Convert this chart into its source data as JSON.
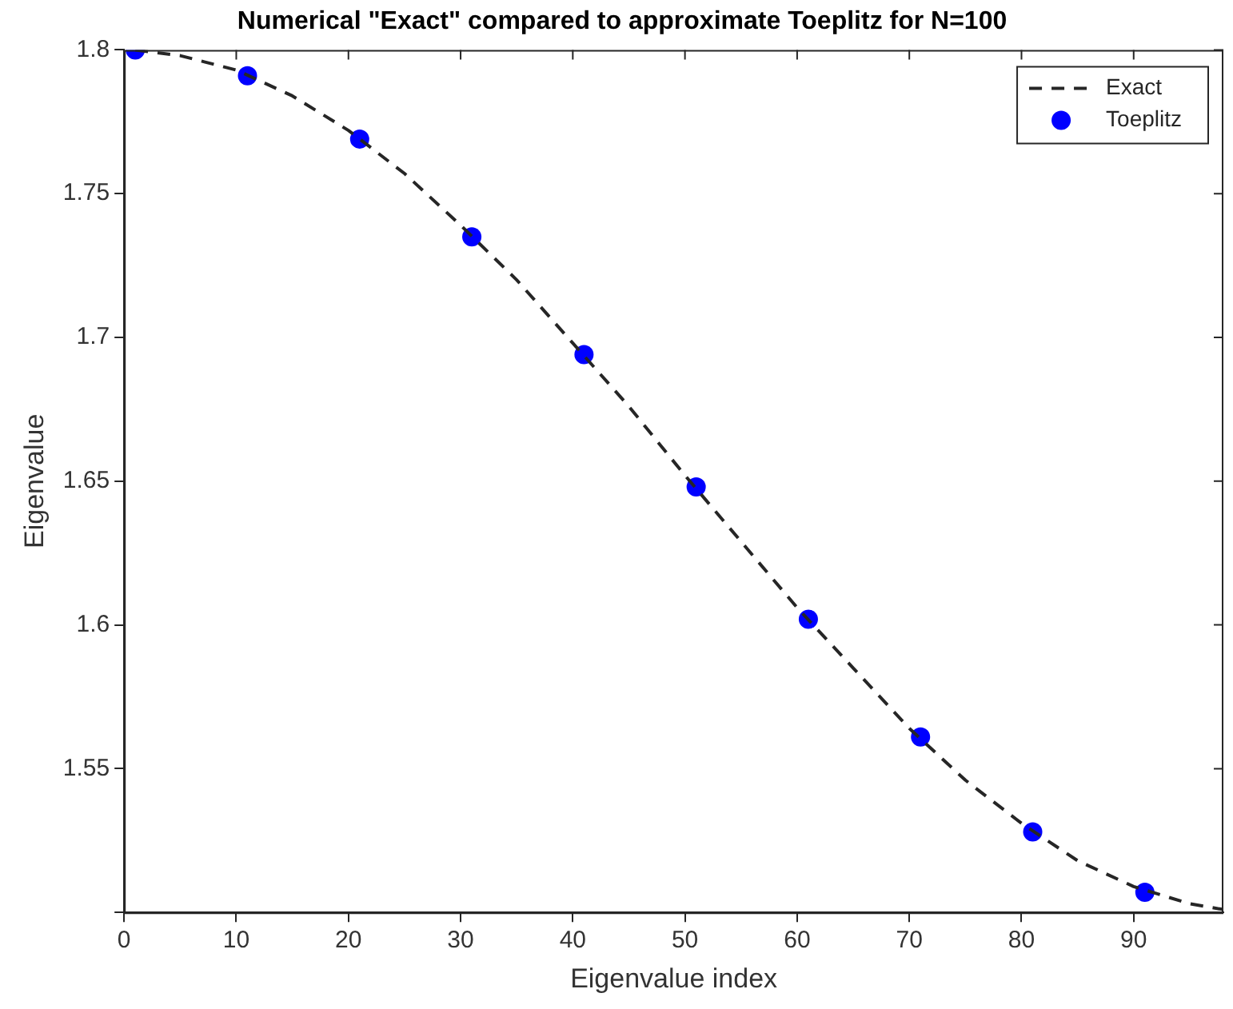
{
  "chart_data": {
    "type": "line",
    "title": "Numerical \"Exact\" compared to approximate Toeplitz for N=100",
    "xlabel": "Eigenvalue index",
    "ylabel": "Eigenvalue",
    "xlim": [
      0,
      98
    ],
    "xticks": [
      0,
      10,
      20,
      30,
      40,
      50,
      60,
      70,
      80,
      90
    ],
    "ylim": [
      1.5,
      1.8
    ],
    "yticks": [
      {
        "value": 1.5,
        "label": null
      },
      1.55,
      1.6,
      1.65,
      1.7,
      1.75,
      1.8
    ],
    "grid": false,
    "legend": "top right",
    "series": [
      {
        "name": "Exact",
        "type": "line",
        "color": "#262626",
        "line_style": "dashed",
        "marker": "none",
        "x": [
          1,
          5,
          10,
          15,
          20,
          25,
          30,
          35,
          40,
          45,
          50,
          55,
          60,
          65,
          70,
          75,
          80,
          85,
          90,
          95,
          98
        ],
        "values": [
          1.8,
          1.798,
          1.793,
          1.784,
          1.772,
          1.757,
          1.739,
          1.72,
          1.698,
          1.676,
          1.652,
          1.629,
          1.606,
          1.585,
          1.564,
          1.546,
          1.531,
          1.518,
          1.509,
          1.503,
          1.501
        ]
      },
      {
        "name": "Toeplitz",
        "type": "scatter",
        "color": "#0000ff",
        "marker": "circle",
        "x": [
          1,
          11,
          21,
          31,
          41,
          51,
          61,
          71,
          81,
          91
        ],
        "values": [
          1.8,
          1.791,
          1.769,
          1.735,
          1.694,
          1.648,
          1.602,
          1.561,
          1.528,
          1.507
        ]
      }
    ]
  }
}
